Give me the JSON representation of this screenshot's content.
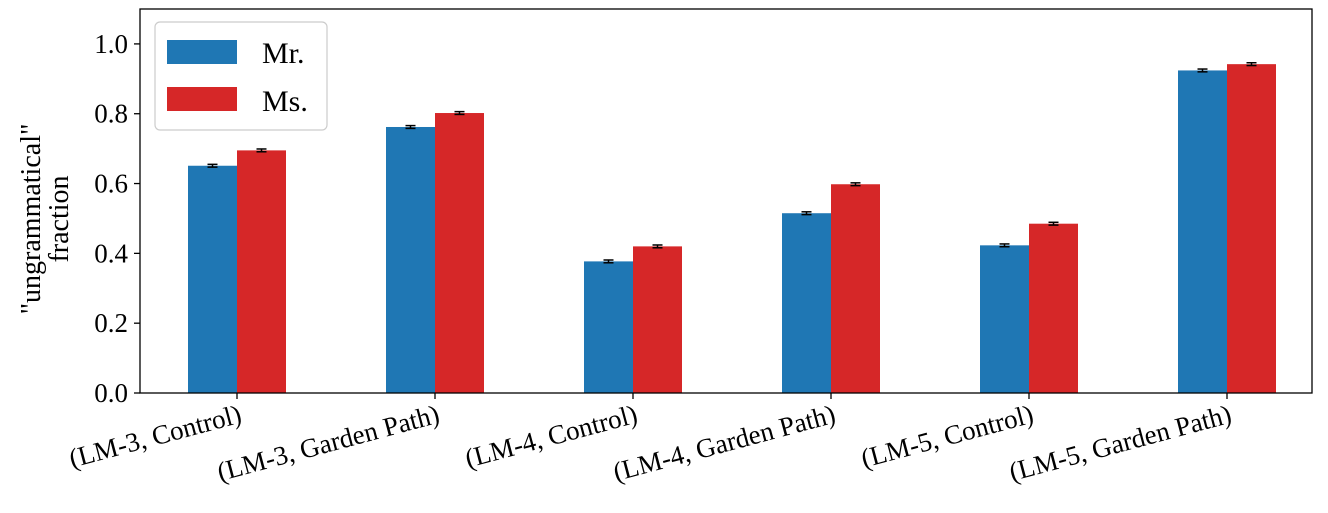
{
  "chart_data": {
    "type": "bar",
    "categories": [
      "(LM-3, Control)",
      "(LM-3, Garden Path)",
      "(LM-4, Control)",
      "(LM-4, Garden Path)",
      "(LM-5, Control)",
      "(LM-5, Garden Path)"
    ],
    "series": [
      {
        "name": "Mr.",
        "values": [
          0.651,
          0.762,
          0.377,
          0.515,
          0.423,
          0.924
        ],
        "color": "#1f77b4"
      },
      {
        "name": "Ms.",
        "values": [
          0.695,
          0.802,
          0.42,
          0.598,
          0.485,
          0.942
        ],
        "color": "#d62728"
      }
    ],
    "error": 0.004,
    "ylabel_line1": "\"ungrammatical\"",
    "ylabel_line2": "fraction",
    "xlabel": "",
    "title": "",
    "ylim": [
      0.0,
      1.1
    ],
    "yticks": [
      "0.0",
      "0.2",
      "0.4",
      "0.6",
      "0.8",
      "1.0"
    ],
    "legend_position": "top-left",
    "grid": false
  }
}
